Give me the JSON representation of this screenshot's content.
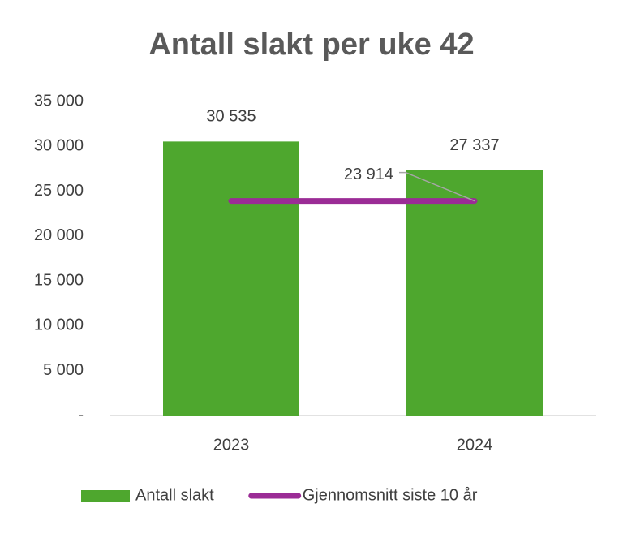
{
  "chart_data": {
    "type": "bar",
    "title": "Antall slakt per uke 42",
    "categories": [
      "2023",
      "2024"
    ],
    "series": [
      {
        "name": "Antall slakt",
        "type": "bar",
        "color": "#4ea72e",
        "values": [
          30535,
          27337
        ],
        "value_labels": [
          "30 535",
          "27 337"
        ]
      },
      {
        "name": "Gjennomsnitt siste 10 år",
        "type": "line",
        "color": "#9b2c96",
        "values": [
          23914,
          23914
        ],
        "value_labels": [
          null,
          "23 914"
        ]
      }
    ],
    "ylim": [
      0,
      35000
    ],
    "yticks": [
      {
        "value": 0,
        "label": "-"
      },
      {
        "value": 5000,
        "label": "5 000"
      },
      {
        "value": 10000,
        "label": "10 000"
      },
      {
        "value": 15000,
        "label": "15 000"
      },
      {
        "value": 20000,
        "label": "20 000"
      },
      {
        "value": 25000,
        "label": "25 000"
      },
      {
        "value": 30000,
        "label": "30 000"
      },
      {
        "value": 35000,
        "label": "35 000"
      }
    ],
    "grid": false,
    "legend": "bottom"
  }
}
